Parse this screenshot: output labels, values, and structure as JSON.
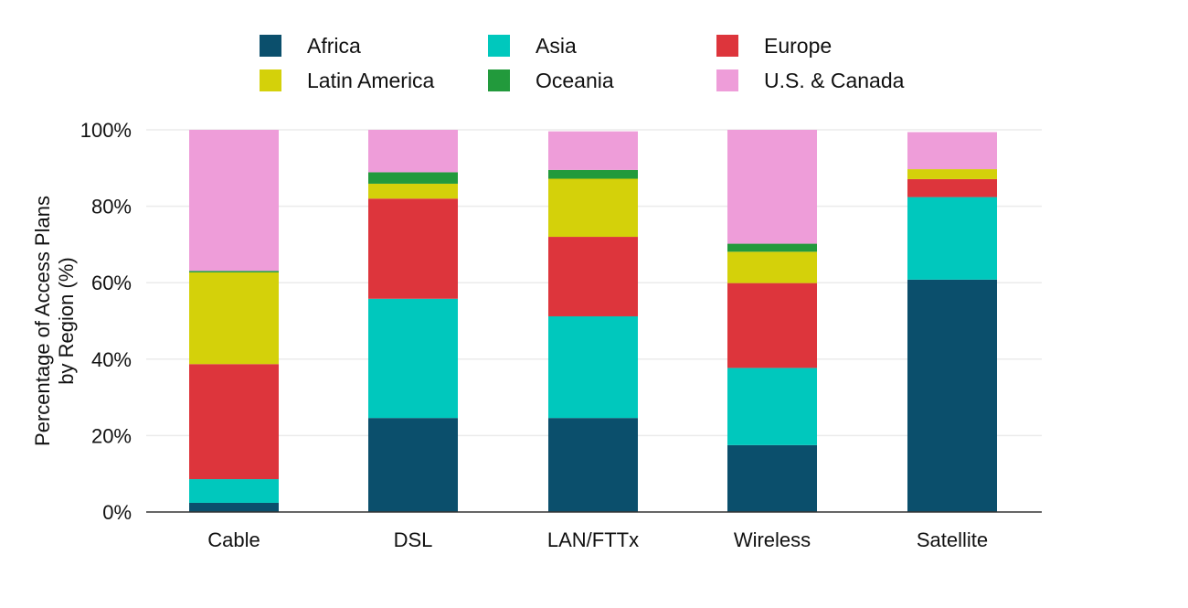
{
  "chart_data": {
    "type": "bar",
    "stacked": true,
    "categories": [
      "Cable",
      "DSL",
      "LAN/FTTx",
      "Wireless",
      "Satellite"
    ],
    "series": [
      {
        "name": "Africa",
        "color": "#0b4f6c",
        "values": [
          2.4,
          24.6,
          24.6,
          17.5,
          60.8
        ]
      },
      {
        "name": "Asia",
        "color": "#00c8bd",
        "values": [
          6.2,
          31.2,
          26.6,
          20.2,
          21.6
        ]
      },
      {
        "name": "Europe",
        "color": "#dd353c",
        "values": [
          30.1,
          26.2,
          20.8,
          22.2,
          4.7
        ]
      },
      {
        "name": "Latin America",
        "color": "#d4d10a",
        "values": [
          24.0,
          3.9,
          15.2,
          8.2,
          2.6
        ]
      },
      {
        "name": "Oceania",
        "color": "#229a3c",
        "values": [
          0.4,
          3.0,
          2.3,
          2.1,
          0.0
        ]
      },
      {
        "name": "U.S. & Canada",
        "color": "#ee9dd9",
        "values": [
          36.9,
          11.1,
          10.1,
          29.8,
          9.7
        ]
      }
    ],
    "ylabel_lines": [
      "Percentage of Access Plans",
      "by Region (%)"
    ],
    "xlabel": "",
    "ylim": [
      0,
      100
    ],
    "yticks": [
      0,
      20,
      40,
      60,
      80,
      100
    ],
    "ytick_labels": [
      "0%",
      "20%",
      "40%",
      "60%",
      "80%",
      "100%"
    ],
    "grid": true,
    "legend_position": "top"
  }
}
